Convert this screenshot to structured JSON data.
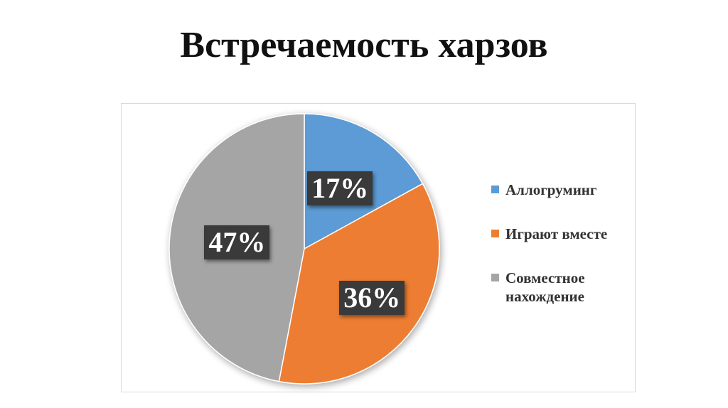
{
  "title": "Встречаемость харзов",
  "chart_data": {
    "type": "pie",
    "title": "",
    "slices": [
      {
        "name": "Аллогруминг",
        "value": 17,
        "label": "17%",
        "color": "#5b9bd5"
      },
      {
        "name": "Играют вместе",
        "value": 36,
        "label": "36%",
        "color": "#ed7d31"
      },
      {
        "name": "Совместное нахождение",
        "value": 47,
        "label": "47%",
        "color": "#a5a5a5"
      }
    ],
    "start_angle_deg": 0,
    "direction": "clockwise",
    "legend_position": "right",
    "data_label_style": "dark box"
  }
}
